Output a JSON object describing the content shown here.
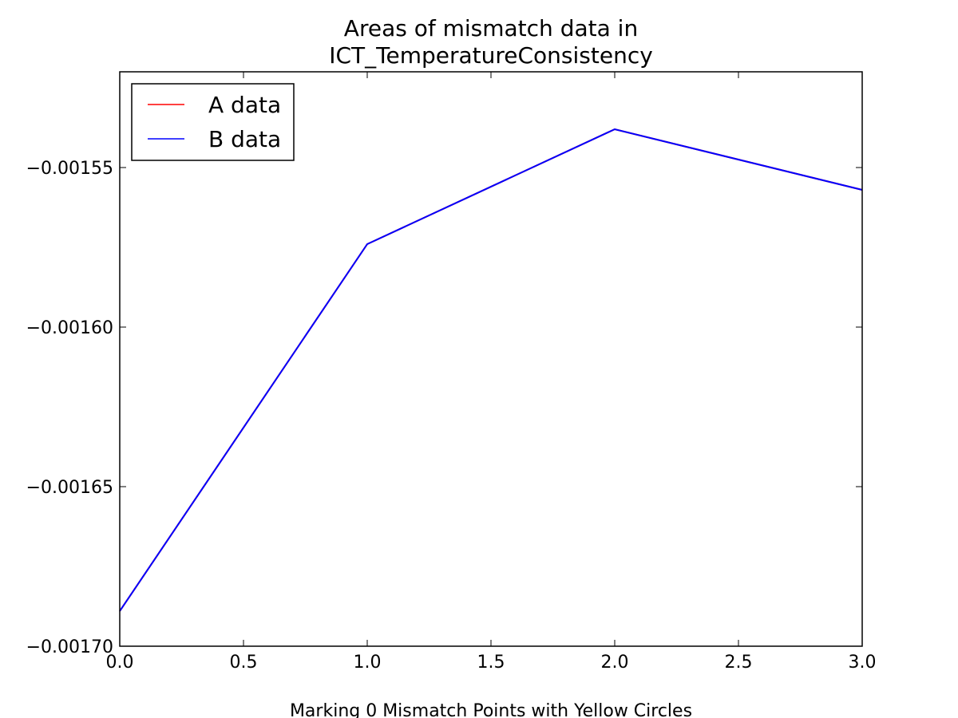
{
  "chart_data": {
    "type": "line",
    "title": [
      "Areas of mismatch data in",
      "ICT_TemperatureConsistency"
    ],
    "xlabel": "Marking 0 Mismatch Points with Yellow Circles",
    "ylabel": "",
    "xlim": [
      0.0,
      3.0
    ],
    "ylim": [
      -0.0017,
      -0.00152
    ],
    "x_ticks": [
      0.0,
      0.5,
      1.0,
      1.5,
      2.0,
      2.5,
      3.0
    ],
    "x_tick_labels": [
      "0.0",
      "0.5",
      "1.0",
      "1.5",
      "2.0",
      "2.5",
      "3.0"
    ],
    "y_ticks": [
      -0.0017,
      -0.00165,
      -0.0016,
      -0.00155
    ],
    "y_tick_labels": [
      "−0.00170",
      "−0.00165",
      "−0.00160",
      "−0.00155"
    ],
    "grid": false,
    "legend_position": "top-left",
    "x": [
      0,
      1,
      2,
      3
    ],
    "series": [
      {
        "name": "A data",
        "color": "#ff0000",
        "values": [
          -0.001689,
          -0.001574,
          -0.001538,
          -0.001557
        ]
      },
      {
        "name": "B data",
        "color": "#0000ff",
        "values": [
          -0.001689,
          -0.001574,
          -0.001538,
          -0.001557
        ]
      }
    ]
  }
}
